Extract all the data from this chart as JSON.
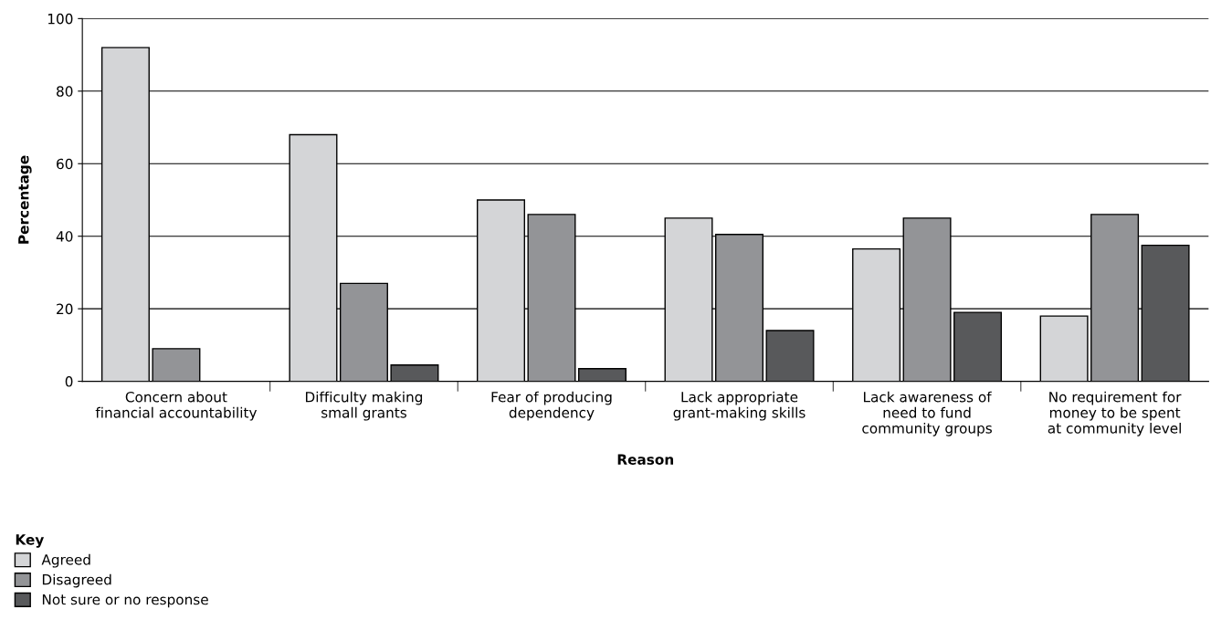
{
  "chart_data": {
    "type": "bar",
    "xlabel": "Reason",
    "ylabel": "Percentage",
    "legend_title": "Key",
    "categories": [
      "Concern about\nfinancial accountability",
      "Difficulty making\nsmall grants",
      "Fear of producing\ndependency",
      "Lack appropriate\ngrant-making skills",
      "Lack awareness of\nneed to fund\ncommunity groups",
      "No requirement for\nmoney to be spent\nat community level"
    ],
    "series": [
      {
        "name": "Agreed",
        "color": "#d4d5d7",
        "values": [
          92,
          68,
          50,
          45,
          36.5,
          18
        ]
      },
      {
        "name": "Disagreed",
        "color": "#939497",
        "values": [
          9,
          27,
          46,
          40.5,
          45,
          46
        ]
      },
      {
        "name": "Not sure or no response",
        "color": "#58595b",
        "values": [
          null,
          4.5,
          3.5,
          14,
          19,
          37.5
        ]
      }
    ],
    "ylim": [
      0,
      100
    ],
    "yticks": [
      0,
      20,
      40,
      60,
      80,
      100
    ],
    "grid": "y",
    "legend": "bottom left"
  }
}
